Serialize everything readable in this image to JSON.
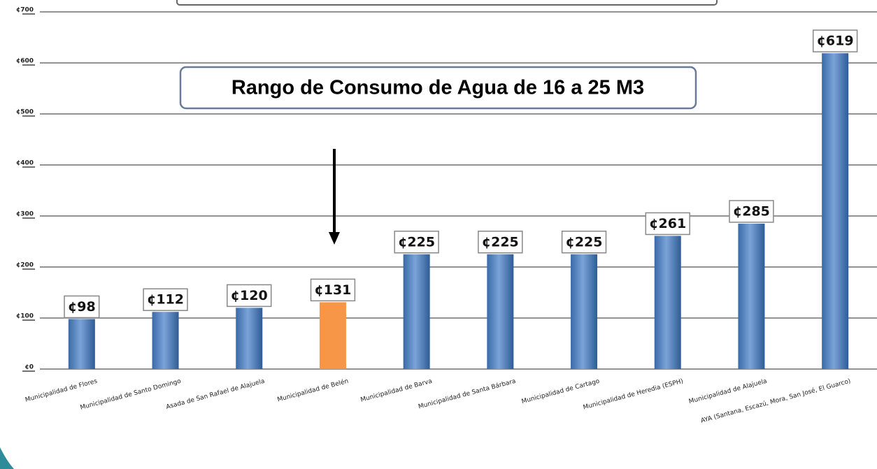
{
  "chart_data": {
    "type": "bar",
    "annotation": "Rango de Consumo de Agua de 16 a 25 M3",
    "categories": [
      "Municipalidad de Flores",
      "Municipalidad de Santo Domingo",
      "Asada de San Rafael de Alajuela",
      "Municipalidad de Belén",
      "Municipalidad de Barva",
      "Municipalidad de Santa Bárbara",
      "Municipalidad de Cartago",
      "Municipalidad de Heredia (ESPH)",
      "Municipalidad de Alajuela",
      "AYA (Santana, Escazú, Mora, San José, El Guarco)"
    ],
    "values": [
      98,
      112,
      120,
      131,
      225,
      225,
      225,
      261,
      285,
      619
    ],
    "value_labels": [
      "¢98",
      "¢112",
      "¢120",
      "¢131",
      "¢225",
      "¢225",
      "¢225",
      "¢261",
      "¢285",
      "¢619"
    ],
    "colors": [
      "#4f81bd",
      "#4f81bd",
      "#4f81bd",
      "#f79646",
      "#4f81bd",
      "#4f81bd",
      "#4f81bd",
      "#4f81bd",
      "#4f81bd",
      "#4f81bd"
    ],
    "ylim": [
      0,
      700
    ],
    "yticks": [
      {
        "value": 0,
        "label": "¢0"
      },
      {
        "value": 100,
        "label": "¢100"
      },
      {
        "value": 200,
        "label": "¢200"
      },
      {
        "value": 300,
        "label": "¢300"
      },
      {
        "value": 400,
        "label": "¢400"
      },
      {
        "value": 500,
        "label": "¢500"
      },
      {
        "value": 600,
        "label": "¢600"
      },
      {
        "value": 700,
        "label": "¢700"
      }
    ],
    "grid": true
  }
}
